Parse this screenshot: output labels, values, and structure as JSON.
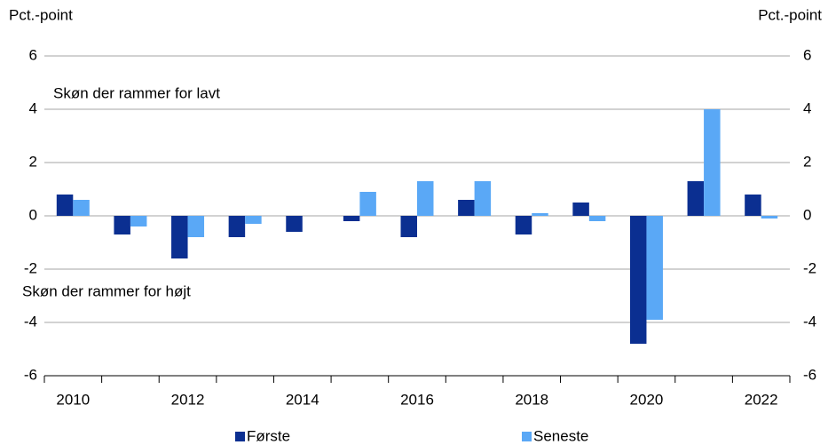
{
  "chart_data": {
    "type": "bar",
    "y_label": "Pct.-point",
    "y2_label": "Pct.-point",
    "annotations": [
      "Skøn der rammer for lavt",
      "Skøn der rammer for højt"
    ],
    "categories": [
      "2010",
      null,
      "2012",
      null,
      "2014",
      null,
      "2016",
      null,
      "2018",
      null,
      "2020",
      null,
      "2022"
    ],
    "series": [
      {
        "name": "Første",
        "color": "#0b2f91",
        "values": [
          0.8,
          -0.7,
          -1.6,
          -0.8,
          -0.6,
          -0.2,
          -0.8,
          0.6,
          -0.7,
          0.5,
          -4.8,
          1.3,
          0.8
        ]
      },
      {
        "name": "Seneste",
        "color": "#5aa8f6",
        "values": [
          0.6,
          -0.4,
          -0.8,
          -0.3,
          0,
          0.9,
          1.3,
          1.3,
          0.1,
          -0.2,
          -3.9,
          4.0,
          -0.1
        ]
      }
    ],
    "ylim": [
      -6,
      6
    ],
    "yticks": [
      -6,
      -4,
      -2,
      0,
      2,
      4,
      6
    ],
    "y2lim": [
      -6,
      6
    ],
    "y2ticks": [
      -6,
      -4,
      -2,
      0,
      2,
      4,
      6
    ],
    "grid": true
  }
}
